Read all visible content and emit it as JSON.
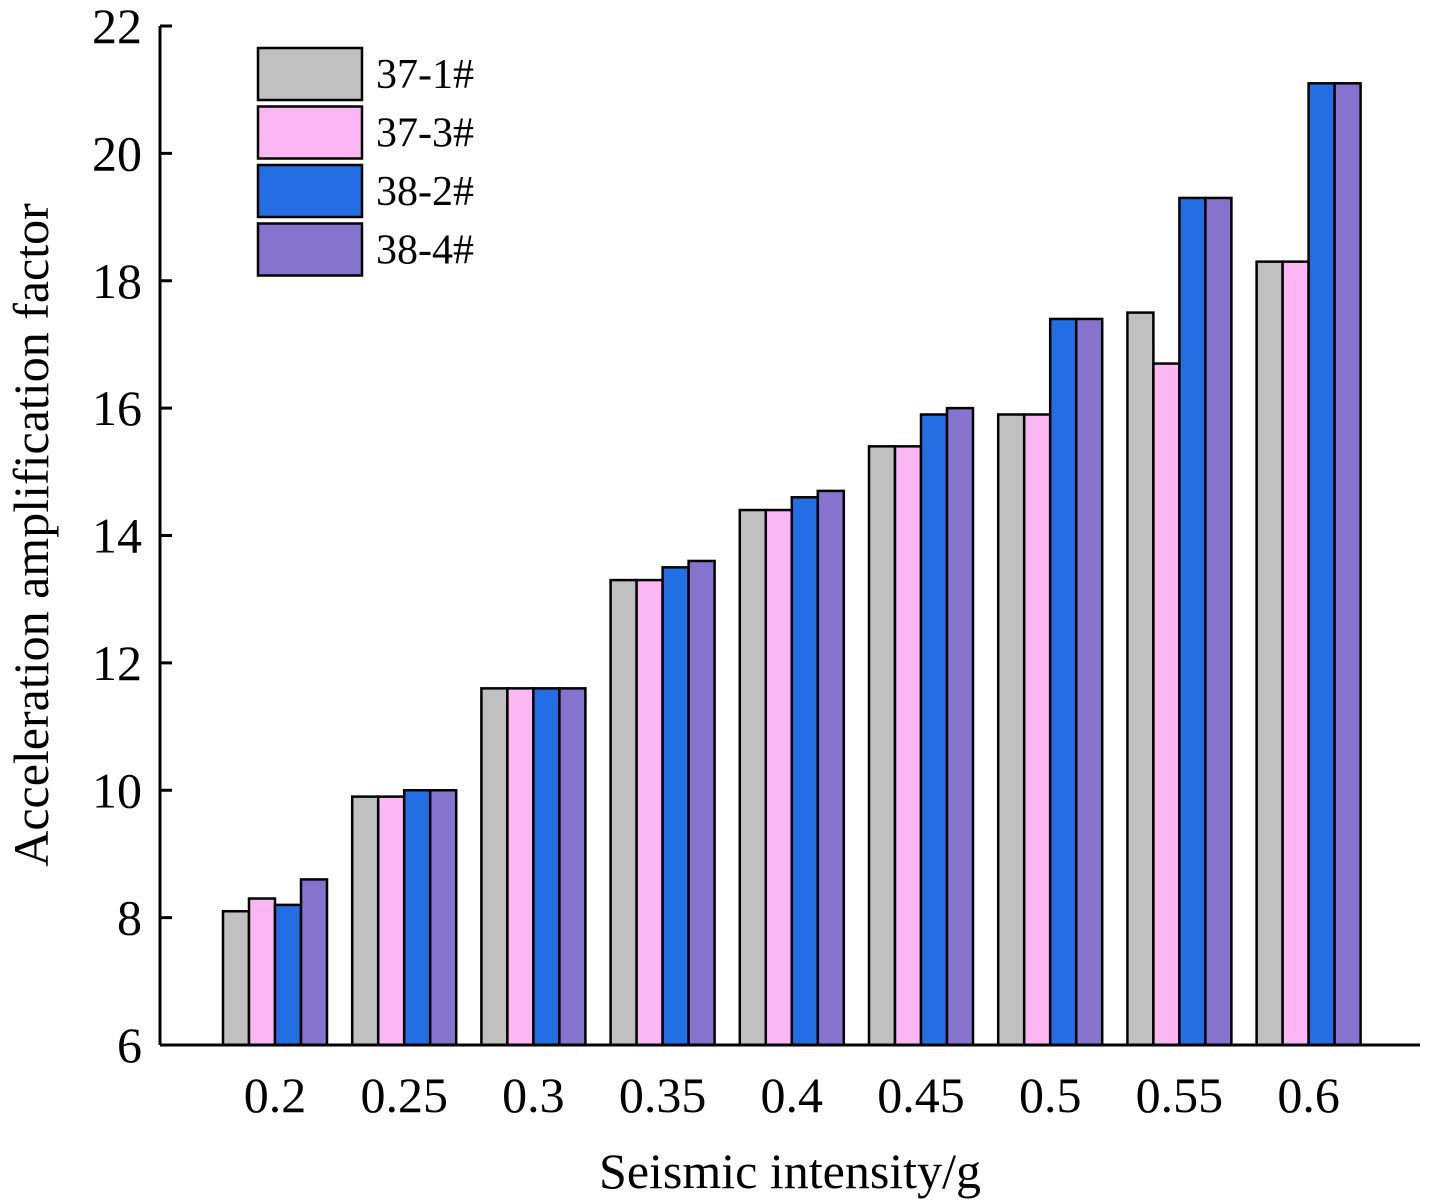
{
  "chart_data": {
    "type": "bar",
    "title": "",
    "xlabel": "Seismic intensity/g",
    "ylabel": "Acceleration amplification factor",
    "categories": [
      "0.2",
      "0.25",
      "0.3",
      "0.35",
      "0.4",
      "0.45",
      "0.5",
      "0.55",
      "0.6"
    ],
    "ylim": [
      6,
      22
    ],
    "yticks": [
      6,
      8,
      10,
      12,
      14,
      16,
      18,
      20,
      22
    ],
    "grid": false,
    "legend_position": "top-left",
    "series": [
      {
        "name": "37-1#",
        "color": "#c0c0c0",
        "values": [
          8.1,
          9.9,
          11.6,
          13.3,
          14.4,
          15.4,
          15.9,
          17.5,
          18.3
        ]
      },
      {
        "name": "37-3#",
        "color": "#fbb6f4",
        "values": [
          8.3,
          9.9,
          11.6,
          13.3,
          14.4,
          15.4,
          15.9,
          16.7,
          18.3
        ]
      },
      {
        "name": "38-2#",
        "color": "#246ee4",
        "values": [
          8.2,
          10.0,
          11.6,
          13.5,
          14.6,
          15.9,
          17.4,
          19.3,
          21.1
        ]
      },
      {
        "name": "38-4#",
        "color": "#8573cd",
        "values": [
          8.6,
          10.0,
          11.6,
          13.6,
          14.7,
          16.0,
          17.4,
          19.3,
          21.1
        ]
      }
    ]
  }
}
